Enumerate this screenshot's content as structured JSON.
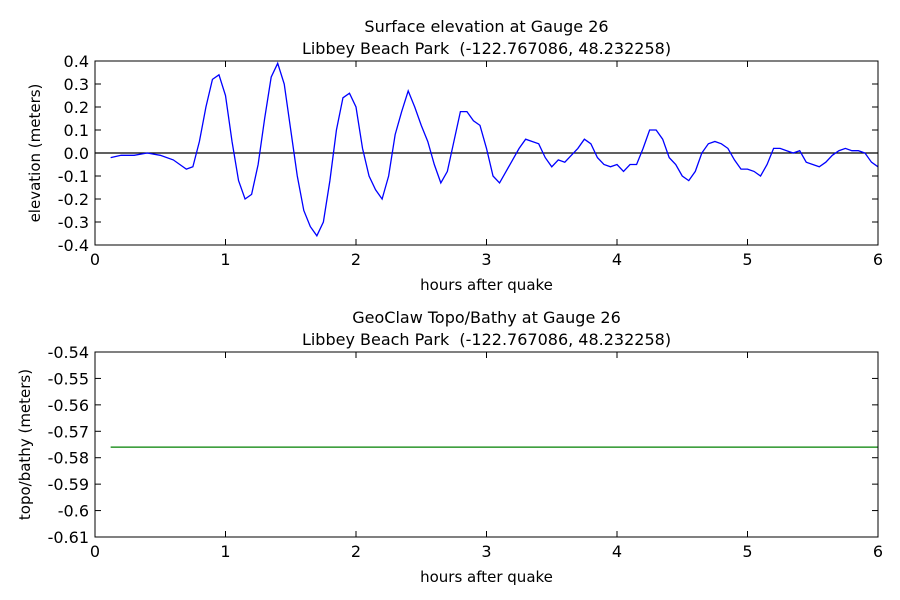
{
  "chart_data": [
    {
      "type": "line",
      "title": "Surface elevation at Gauge 26",
      "subtitle": "Libbey Beach Park  (-122.767086, 48.232258)",
      "xlabel": "hours after quake",
      "ylabel": "elevation (meters)",
      "xlim": [
        0,
        6
      ],
      "xticks": [
        0,
        1,
        2,
        3,
        4,
        5,
        6
      ],
      "ylim": [
        -0.4,
        0.4
      ],
      "yticks": [
        -0.4,
        -0.3,
        -0.2,
        -0.1,
        {
          "value": 0,
          "label": "0.0"
        },
        0.1,
        0.2,
        0.3,
        0.4
      ],
      "hline": {
        "y": 0,
        "color": "#000000"
      },
      "x": [
        0.12,
        0.2,
        0.3,
        0.4,
        0.5,
        0.6,
        0.7,
        0.75,
        0.8,
        0.85,
        0.9,
        0.95,
        1.0,
        1.05,
        1.1,
        1.15,
        1.2,
        1.25,
        1.3,
        1.35,
        1.4,
        1.45,
        1.5,
        1.55,
        1.6,
        1.65,
        1.7,
        1.75,
        1.8,
        1.85,
        1.9,
        1.95,
        2.0,
        2.05,
        2.1,
        2.15,
        2.2,
        2.25,
        2.3,
        2.35,
        2.4,
        2.45,
        2.5,
        2.55,
        2.6,
        2.65,
        2.7,
        2.75,
        2.8,
        2.85,
        2.9,
        2.95,
        3.0,
        3.05,
        3.1,
        3.15,
        3.2,
        3.25,
        3.3,
        3.35,
        3.4,
        3.45,
        3.5,
        3.55,
        3.6,
        3.65,
        3.7,
        3.75,
        3.8,
        3.85,
        3.9,
        3.95,
        4.0,
        4.05,
        4.1,
        4.15,
        4.2,
        4.25,
        4.3,
        4.35,
        4.4,
        4.45,
        4.5,
        4.55,
        4.6,
        4.65,
        4.7,
        4.75,
        4.8,
        4.85,
        4.9,
        4.95,
        5.0,
        5.05,
        5.1,
        5.15,
        5.2,
        5.25,
        5.3,
        5.35,
        5.4,
        5.45,
        5.5,
        5.55,
        5.6,
        5.65,
        5.7,
        5.75,
        5.8,
        5.85,
        5.9,
        5.95,
        6.0
      ],
      "series": [
        {
          "color": "#0000ff",
          "values": [
            -0.02,
            -0.01,
            -0.01,
            0.0,
            -0.01,
            -0.03,
            -0.07,
            -0.06,
            0.05,
            0.2,
            0.32,
            0.34,
            0.25,
            0.05,
            -0.12,
            -0.2,
            -0.18,
            -0.05,
            0.15,
            0.33,
            0.39,
            0.3,
            0.1,
            -0.1,
            -0.25,
            -0.32,
            -0.36,
            -0.3,
            -0.12,
            0.1,
            0.24,
            0.26,
            0.2,
            0.02,
            -0.1,
            -0.16,
            -0.2,
            -0.1,
            0.08,
            0.18,
            0.27,
            0.2,
            0.12,
            0.05,
            -0.05,
            -0.13,
            -0.08,
            0.05,
            0.18,
            0.18,
            0.14,
            0.12,
            0.02,
            -0.1,
            -0.13,
            -0.08,
            -0.03,
            0.02,
            0.06,
            0.05,
            0.04,
            -0.02,
            -0.06,
            -0.03,
            -0.04,
            -0.01,
            0.02,
            0.06,
            0.04,
            -0.02,
            -0.05,
            -0.06,
            -0.05,
            -0.08,
            -0.05,
            -0.05,
            0.02,
            0.1,
            0.1,
            0.06,
            -0.02,
            -0.05,
            -0.1,
            -0.12,
            -0.08,
            0.0,
            0.04,
            0.05,
            0.04,
            0.02,
            -0.03,
            -0.07,
            -0.07,
            -0.08,
            -0.1,
            -0.05,
            0.02,
            0.02,
            0.01,
            0.0,
            0.01,
            -0.04,
            -0.05,
            -0.06,
            -0.04,
            -0.01,
            0.01,
            0.02,
            0.01,
            0.01,
            0.0,
            -0.04,
            -0.06
          ]
        }
      ]
    },
    {
      "type": "line",
      "title": "GeoClaw Topo/Bathy at Gauge 26",
      "subtitle": "Libbey Beach Park  (-122.767086, 48.232258)",
      "xlabel": "hours after quake",
      "ylabel": "topo/bathy (meters)",
      "xlim": [
        0,
        6
      ],
      "xticks": [
        0,
        1,
        2,
        3,
        4,
        5,
        6
      ],
      "ylim": [
        -0.61,
        -0.54
      ],
      "yticks": [
        -0.61,
        -0.6,
        -0.59,
        -0.58,
        -0.57,
        -0.56,
        -0.55,
        -0.54
      ],
      "x": [
        0.12,
        6.0
      ],
      "series": [
        {
          "color": "#008000",
          "values": [
            -0.576,
            -0.576
          ]
        }
      ]
    }
  ]
}
